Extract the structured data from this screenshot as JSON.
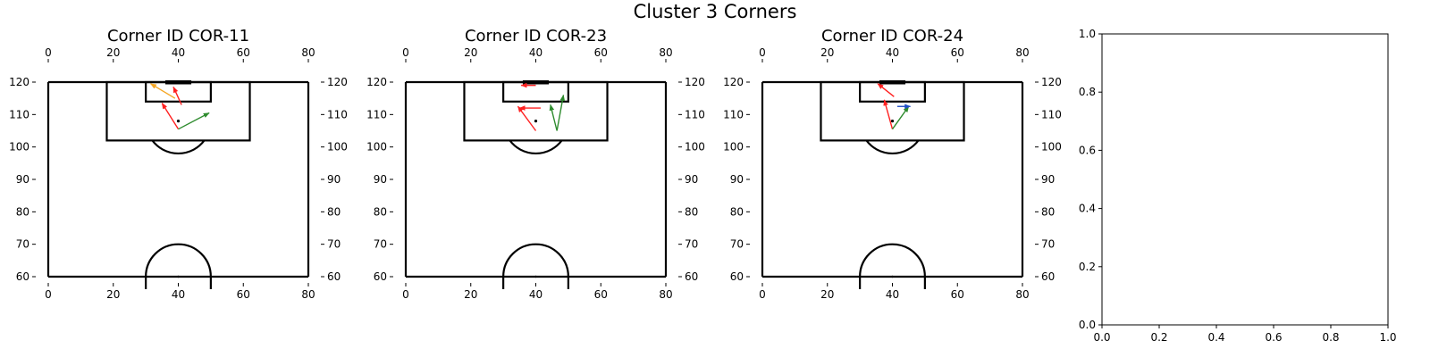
{
  "figure": {
    "suptitle": "Cluster 3 Corners"
  },
  "colors": {
    "pitch_line": "#000000",
    "red": "#ff2020",
    "green": "#2e8b2e",
    "orange": "#f5a623",
    "blue": "#2050c8"
  },
  "chart_data": [
    {
      "type": "scatter",
      "title": "Corner ID COR-11",
      "xlim": [
        0,
        80
      ],
      "ylim": [
        60,
        120
      ],
      "x_ticks": [
        0,
        20,
        40,
        60,
        80
      ],
      "y_ticks": [
        60,
        70,
        80,
        90,
        100,
        110,
        120
      ],
      "points": [
        {
          "x": 40,
          "y": 108
        }
      ],
      "arrows": [
        {
          "x0": 40,
          "y0": 105.5,
          "x1": 35,
          "y1": 113.5,
          "color": "red"
        },
        {
          "x0": 40,
          "y0": 105.5,
          "x1": 49.5,
          "y1": 110.5,
          "color": "green"
        },
        {
          "x0": 41,
          "y0": 113,
          "x1": 38.5,
          "y1": 118.5,
          "color": "red"
        },
        {
          "x0": 39,
          "y0": 115,
          "x1": 31.5,
          "y1": 119.5,
          "color": "orange"
        }
      ]
    },
    {
      "type": "scatter",
      "title": "Corner ID COR-23",
      "xlim": [
        0,
        80
      ],
      "ylim": [
        60,
        120
      ],
      "x_ticks": [
        0,
        20,
        40,
        60,
        80
      ],
      "y_ticks": [
        60,
        70,
        80,
        90,
        100,
        110,
        120
      ],
      "points": [
        {
          "x": 40,
          "y": 108
        }
      ],
      "arrows": [
        {
          "x0": 40,
          "y0": 119,
          "x1": 35.5,
          "y1": 119,
          "color": "red"
        },
        {
          "x0": 41.5,
          "y0": 112,
          "x1": 35,
          "y1": 112,
          "color": "red"
        },
        {
          "x0": 40,
          "y0": 105,
          "x1": 34.5,
          "y1": 112.5,
          "color": "red"
        },
        {
          "x0": 46.5,
          "y0": 105,
          "x1": 44.5,
          "y1": 113,
          "color": "green"
        },
        {
          "x0": 46.5,
          "y0": 105,
          "x1": 48.5,
          "y1": 116,
          "color": "green"
        }
      ]
    },
    {
      "type": "scatter",
      "title": "Corner ID COR-24",
      "xlim": [
        0,
        80
      ],
      "ylim": [
        60,
        120
      ],
      "x_ticks": [
        0,
        20,
        40,
        60,
        80
      ],
      "y_ticks": [
        60,
        70,
        80,
        90,
        100,
        110,
        120
      ],
      "points": [
        {
          "x": 40,
          "y": 108
        }
      ],
      "arrows": [
        {
          "x0": 40,
          "y0": 105.5,
          "x1": 37.5,
          "y1": 114.5,
          "color": "red"
        },
        {
          "x0": 40,
          "y0": 105.5,
          "x1": 45,
          "y1": 112.5,
          "color": "green"
        },
        {
          "x0": 40.5,
          "y0": 115.5,
          "x1": 35.5,
          "y1": 119.5,
          "color": "red"
        },
        {
          "x0": 41.5,
          "y0": 112.5,
          "x1": 45.5,
          "y1": 112.5,
          "color": "blue"
        }
      ]
    },
    {
      "type": "table",
      "title": "",
      "xlim": [
        0,
        1
      ],
      "ylim": [
        0,
        1
      ],
      "x_ticks": [
        "0.0",
        "0.2",
        "0.4",
        "0.6",
        "0.8",
        "1.0"
      ],
      "y_ticks": [
        "0.0",
        "0.2",
        "0.4",
        "0.6",
        "0.8",
        "1.0"
      ]
    }
  ]
}
